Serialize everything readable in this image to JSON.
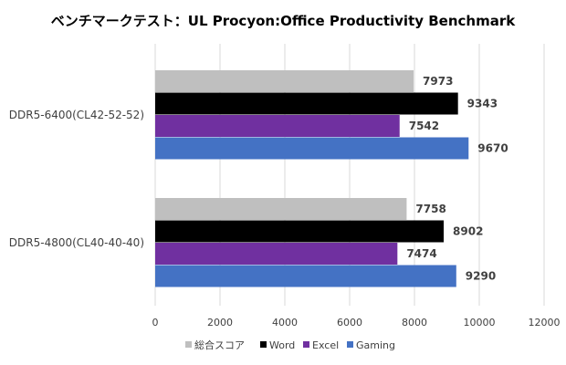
{
  "chart_data": {
    "type": "bar",
    "orientation": "horizontal",
    "title": "ベンチマークテスト：UL Procyon:Office Productivity Benchmark",
    "categories": [
      "DDR5-6400(CL42-52-52)",
      "DDR5-4800(CL40-40-40)"
    ],
    "series": [
      {
        "name": "総合スコア",
        "color": "#bfbfbf",
        "values": [
          7973,
          7758
        ]
      },
      {
        "name": "Word",
        "color": "#000000",
        "values": [
          9343,
          8902
        ]
      },
      {
        "name": "Excel",
        "color": "#7030a0",
        "values": [
          7542,
          7474
        ]
      },
      {
        "name": "Gaming",
        "color": "#4472c4",
        "values": [
          9670,
          9290
        ]
      }
    ],
    "xlim": [
      0,
      12000
    ],
    "xticks": [
      "0",
      "2000",
      "4000",
      "6000",
      "8000",
      "10000",
      "12000"
    ],
    "xlabel": "",
    "ylabel": "",
    "grid": true,
    "legend": "bottom"
  }
}
